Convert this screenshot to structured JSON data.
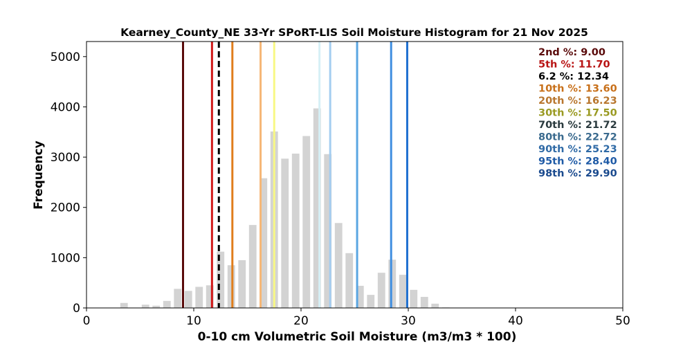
{
  "chart_data": {
    "type": "bar",
    "title": "Kearney_County_NE 33-Yr SPoRT-LIS Soil Moisture Histogram for 21 Nov 2025",
    "xlabel": "0-10 cm Volumetric Soil Moisture (m3/m3 * 100)",
    "ylabel": "Frequency",
    "xlim": [
      0,
      50
    ],
    "ylim": [
      0,
      5300
    ],
    "xticks": [
      "0",
      "10",
      "20",
      "30",
      "40",
      "50"
    ],
    "yticks": [
      "0",
      "1000",
      "2000",
      "3000",
      "4000",
      "5000"
    ],
    "bar_color": "#d3d3d3",
    "bars": [
      {
        "x": 3.5,
        "y": 100
      },
      {
        "x": 4.5,
        "y": 5
      },
      {
        "x": 5.5,
        "y": 65
      },
      {
        "x": 6.5,
        "y": 45
      },
      {
        "x": 7.5,
        "y": 140
      },
      {
        "x": 8.5,
        "y": 380
      },
      {
        "x": 9.5,
        "y": 340
      },
      {
        "x": 10.5,
        "y": 420
      },
      {
        "x": 11.5,
        "y": 450
      },
      {
        "x": 12.5,
        "y": 1120
      },
      {
        "x": 13.5,
        "y": 850
      },
      {
        "x": 14.5,
        "y": 950
      },
      {
        "x": 15.5,
        "y": 1650
      },
      {
        "x": 16.5,
        "y": 2580
      },
      {
        "x": 17.5,
        "y": 3510
      },
      {
        "x": 18.5,
        "y": 2970
      },
      {
        "x": 19.5,
        "y": 3070
      },
      {
        "x": 20.5,
        "y": 3420
      },
      {
        "x": 21.5,
        "y": 3970
      },
      {
        "x": 22.5,
        "y": 3060
      },
      {
        "x": 23.5,
        "y": 1690
      },
      {
        "x": 24.5,
        "y": 1090
      },
      {
        "x": 25.5,
        "y": 440
      },
      {
        "x": 26.5,
        "y": 260
      },
      {
        "x": 27.5,
        "y": 700
      },
      {
        "x": 28.5,
        "y": 960
      },
      {
        "x": 29.5,
        "y": 660
      },
      {
        "x": 30.5,
        "y": 360
      },
      {
        "x": 31.5,
        "y": 220
      },
      {
        "x": 32.5,
        "y": 85
      },
      {
        "x": 33.5,
        "y": 10
      }
    ],
    "lines": [
      {
        "label": "2nd %: 9.00",
        "value": 9.0,
        "color": "#5a0a0a",
        "text_color": "#5a0a0a",
        "dashed": false
      },
      {
        "label": "5th %: 11.70",
        "value": 11.7,
        "color": "#d01818",
        "text_color": "#b81414",
        "dashed": false
      },
      {
        "label": "6.2 %: 12.34",
        "value": 12.34,
        "color": "#000000",
        "text_color": "#000000",
        "dashed": true
      },
      {
        "label": "10th %: 13.60",
        "value": 13.6,
        "color": "#e07e1c",
        "text_color": "#c8701a",
        "dashed": false
      },
      {
        "label": "20th %: 16.23",
        "value": 16.23,
        "color": "#f6b675",
        "text_color": "#b8762e",
        "dashed": false
      },
      {
        "label": "30th %: 17.50",
        "value": 17.5,
        "color": "#f8f884",
        "text_color": "#9a9a22",
        "dashed": false
      },
      {
        "label": "70th %: 21.72",
        "value": 21.72,
        "color": "#d6f0f6",
        "text_color": "#2a3a3e",
        "dashed": false
      },
      {
        "label": "80th %: 22.72",
        "value": 22.72,
        "color": "#a4cdf0",
        "text_color": "#3a6a8e",
        "dashed": false
      },
      {
        "label": "90th %: 25.23",
        "value": 25.23,
        "color": "#5aa6e2",
        "text_color": "#2f6aa6",
        "dashed": false
      },
      {
        "label": "95th %: 28.40",
        "value": 28.4,
        "color": "#3f8ee0",
        "text_color": "#1e5aa6",
        "dashed": false
      },
      {
        "label": "98th %: 29.90",
        "value": 29.9,
        "color": "#1e6fd0",
        "text_color": "#1a4a8e",
        "dashed": false
      }
    ]
  }
}
